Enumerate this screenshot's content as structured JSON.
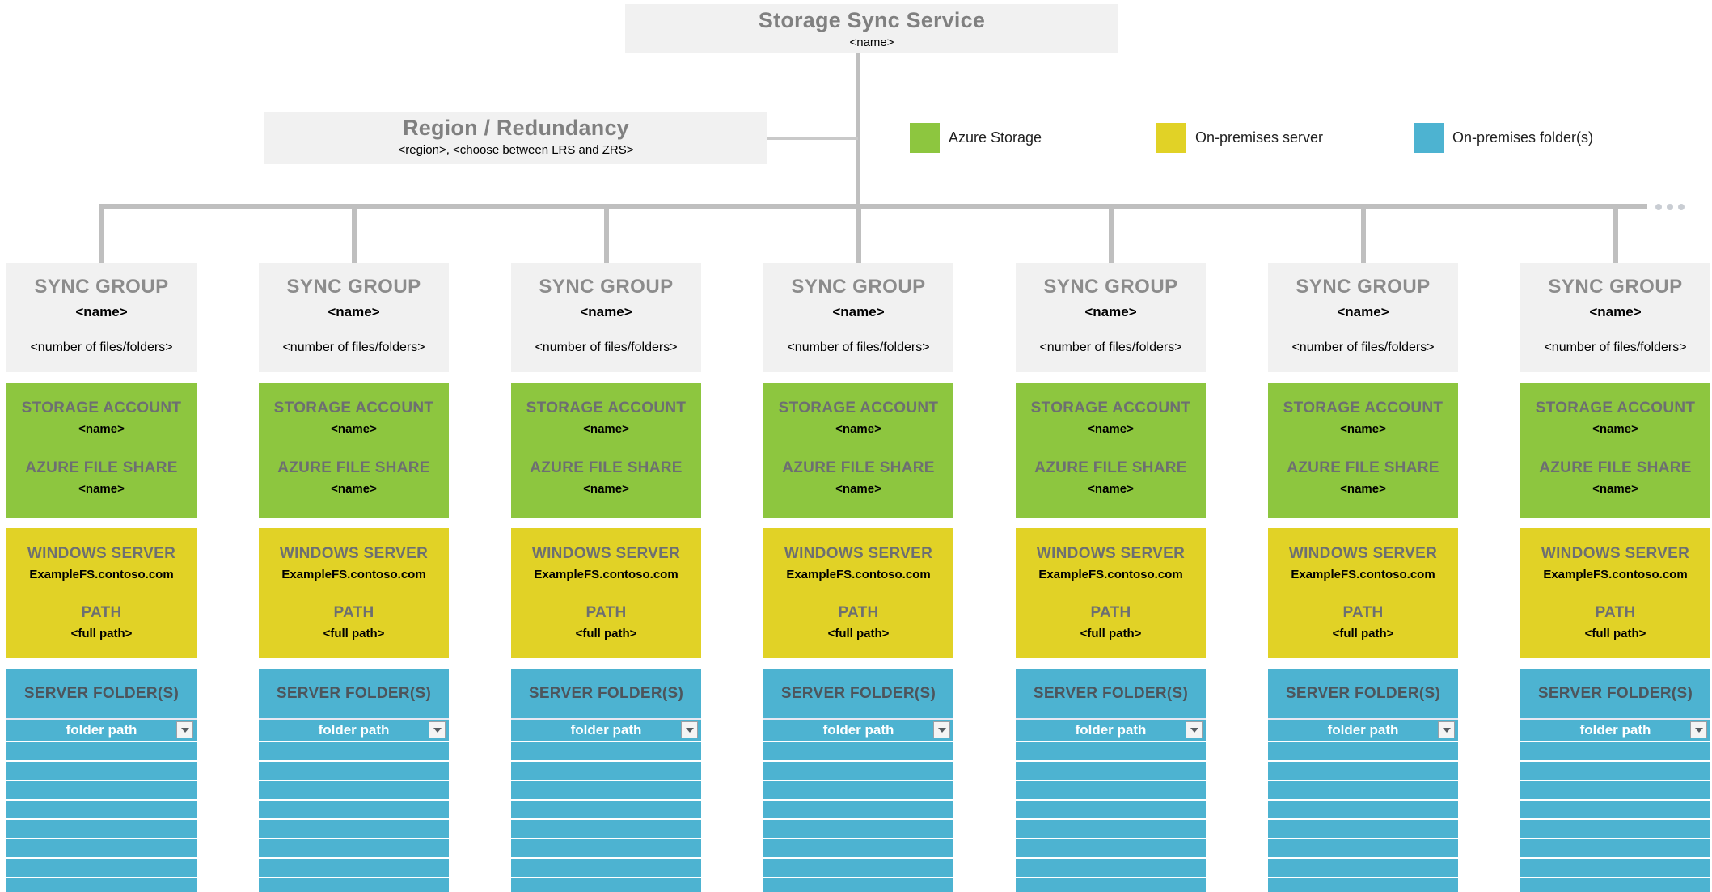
{
  "colors": {
    "azure_storage": "#8dc63f",
    "on_premises_server": "#e1d226",
    "on_premises_folders": "#4db3d1",
    "box_background": "#f1f1f1",
    "connector": "#bfbfbf"
  },
  "root": {
    "title": "Storage Sync Service",
    "subtitle": "<name>"
  },
  "region": {
    "title": "Region / Redundancy",
    "subtitle": "<region>, <choose between LRS and ZRS>"
  },
  "legend": {
    "items": [
      {
        "label": "Azure Storage",
        "color": "#8dc63f"
      },
      {
        "label": "On-premises server",
        "color": "#e1d226"
      },
      {
        "label": "On-premises folder(s)",
        "color": "#4db3d1"
      }
    ]
  },
  "continuation": {
    "dot_count": 3
  },
  "sync_group_template": {
    "header": {
      "title": "SYNC GROUP",
      "name": "<name>",
      "count": "<number of files/folders>"
    },
    "storage": {
      "account_label": "STORAGE ACCOUNT",
      "account_name": "<name>",
      "share_label": "AZURE FILE SHARE",
      "share_name": "<name>"
    },
    "server": {
      "label": "WINDOWS SERVER",
      "hostname": "ExampleFS.contoso.com",
      "path_label": "PATH",
      "path_value": "<full path>"
    },
    "folders": {
      "label": "SERVER FOLDER(S)",
      "first_row": "folder path",
      "empty_rows": 8
    }
  },
  "sync_group_count": 7
}
